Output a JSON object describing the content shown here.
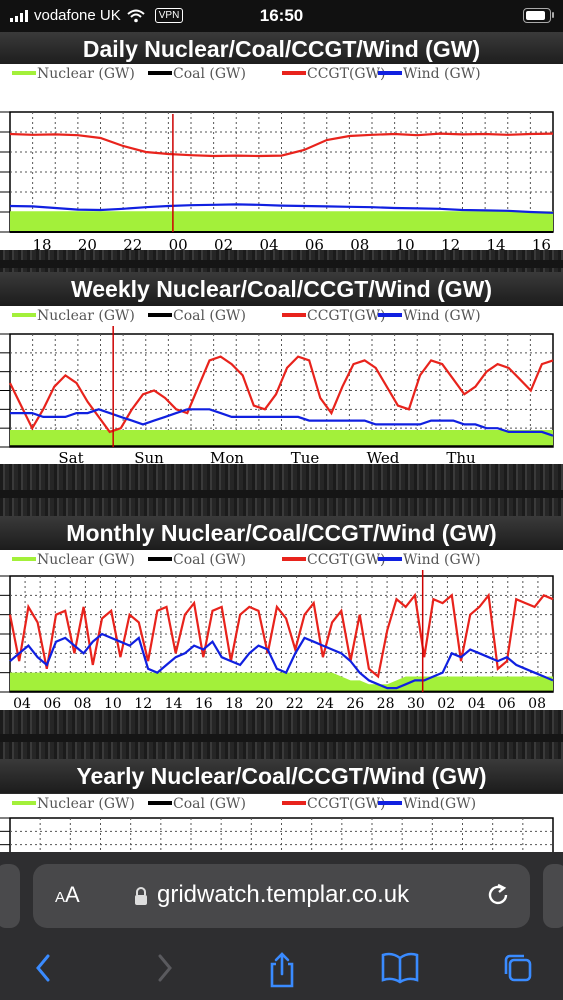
{
  "status_bar": {
    "carrier": "vodafone UK",
    "vpn": "VPN",
    "time": "16:50"
  },
  "page": {
    "sections": [
      {
        "title": "Daily Nuclear/Coal/CCGT/Wind (GW)"
      },
      {
        "title": "Weekly Nuclear/Coal/CCGT/Wind (GW)"
      },
      {
        "title": "Monthly Nuclear/Coal/CCGT/Wind (GW)"
      },
      {
        "title": "Yearly Nuclear/Coal/CCGT/Wind (GW)"
      }
    ]
  },
  "browser": {
    "aa_label_small": "A",
    "aa_label_large": "A",
    "url": "gridwatch.templar.co.uk"
  },
  "colors": {
    "nuclear": "#a3f03a",
    "coal": "#000000",
    "ccgt": "#e8231c",
    "wind": "#1020e0",
    "marker": "#cc0000"
  },
  "chart_data": [
    {
      "type": "line",
      "title": "Daily Nuclear/Coal/CCGT/Wind (GW)",
      "legend": [
        "Nuclear (GW)",
        "Coal (GW)",
        "CCGT(GW)",
        "Wind (GW)"
      ],
      "legend_position": "top",
      "x_ticks": [
        "18",
        "20",
        "22",
        "00",
        "02",
        "04",
        "06",
        "08",
        "10",
        "12",
        "14",
        "16"
      ],
      "grid": true,
      "series": [
        {
          "name": "CCGT(GW)",
          "values": [
            24.5,
            24.3,
            24.4,
            24.2,
            23.5,
            21.5,
            20.0,
            19.5,
            19.2,
            19.0,
            19.1,
            19.0,
            19.1,
            20.5,
            23.0,
            24.0,
            24.3,
            24.5,
            24.2,
            24.6,
            24.4,
            24.5,
            24.3,
            24.5,
            24.6
          ]
        },
        {
          "name": "Wind (GW)",
          "values": [
            6.5,
            6.4,
            6.0,
            5.6,
            5.5,
            5.8,
            6.2,
            6.5,
            6.7,
            6.8,
            6.9,
            6.8,
            6.6,
            6.5,
            6.4,
            6.3,
            6.2,
            6.0,
            5.9,
            5.8,
            5.5,
            5.4,
            5.3,
            5.0,
            4.8
          ]
        },
        {
          "name": "Nuclear (GW)",
          "values": [
            5.2,
            5.2,
            5.2,
            5.2,
            5.2,
            5.2,
            5.2,
            5.2,
            5.2,
            5.2,
            5.2,
            5.2,
            5.2,
            5.2,
            5.2,
            5.2,
            5.2,
            5.2,
            5.2,
            5.2,
            5.2,
            5.2,
            5.2,
            5.2,
            5.2
          ]
        },
        {
          "name": "Coal (GW)",
          "values": [
            0,
            0,
            0,
            0,
            0,
            0,
            0,
            0,
            0,
            0,
            0,
            0,
            0,
            0,
            0,
            0,
            0,
            0,
            0,
            0,
            0,
            0,
            0,
            0,
            0
          ]
        }
      ]
    },
    {
      "type": "line",
      "title": "Weekly Nuclear/Coal/CCGT/Wind (GW)",
      "legend": [
        "Nuclear (GW)",
        "Coal (GW)",
        "CCGT(GW)",
        "Wind (GW)"
      ],
      "legend_position": "top",
      "x_ticks": [
        "Sat",
        "Sun",
        "Mon",
        "Tue",
        "Wed",
        "Thu"
      ],
      "grid": true,
      "series": [
        {
          "name": "CCGT(GW)",
          "values": [
            17,
            11,
            5,
            10,
            16,
            19,
            17,
            12,
            8,
            4,
            5,
            10,
            14,
            15,
            13,
            10,
            9,
            16,
            23,
            24,
            22,
            19,
            11,
            10,
            14,
            21,
            24,
            23,
            13,
            9,
            16,
            22,
            23,
            21,
            16,
            11,
            10,
            19,
            23,
            22,
            18,
            14,
            16,
            20,
            22,
            21,
            18,
            15,
            22,
            23
          ]
        },
        {
          "name": "Wind (GW)",
          "values": [
            9,
            9,
            9,
            8,
            8,
            8,
            9,
            9,
            10,
            9,
            8,
            7,
            6,
            7,
            8,
            9,
            10,
            10,
            10,
            9,
            8,
            8,
            8,
            8,
            8,
            8,
            8,
            7,
            7,
            7,
            7,
            7,
            7,
            6,
            6,
            6,
            6,
            6,
            7,
            7,
            7,
            6,
            6,
            5,
            5,
            4,
            4,
            4,
            4,
            3
          ]
        },
        {
          "name": "Nuclear (GW)",
          "values": [
            4.5,
            4.5,
            4.5,
            4.5,
            4.5,
            4.5,
            4.5,
            4.5,
            4.5,
            4.5,
            4.5,
            4.5,
            4.5,
            4.5,
            4.5,
            4.5,
            4.5,
            4.5,
            4.5,
            4.5,
            4.5,
            4.5,
            4.5,
            4.5,
            4.5,
            4.5,
            4.5,
            4.5,
            4.5,
            4.5,
            4.5,
            4.5,
            4.5,
            4.5,
            4.5,
            4.5,
            4.5,
            4.5,
            4.5,
            4.5,
            4.5,
            4.5,
            4.5,
            4.5,
            4.5,
            4.5,
            4.5,
            4.5,
            4.5,
            4.5
          ]
        },
        {
          "name": "Coal (GW)",
          "values": [
            0.2,
            0.2,
            0.2,
            0.2,
            0.2,
            0.2,
            0.2,
            0.2,
            0.2,
            0.2,
            0.2,
            0.2,
            0.2,
            0.2,
            0.2,
            0.2,
            0.2,
            0.2,
            0.2,
            0.2,
            0.2,
            0.2,
            0.2,
            0.2,
            0.2,
            0.2,
            0.2,
            0.2,
            0.2,
            0.2,
            0.2,
            0.2,
            0.2,
            0.2,
            0.2,
            0.2,
            0.2,
            0.2,
            0.2,
            0.2,
            0.2,
            0.2,
            0.2,
            0.2,
            0.2,
            0.2,
            0.2,
            0.2,
            0.2,
            0.2
          ]
        }
      ]
    },
    {
      "type": "line",
      "title": "Monthly Nuclear/Coal/CCGT/Wind (GW)",
      "legend": [
        "Nuclear (GW)",
        "Coal (GW)",
        "CCGT(GW)",
        "Wind (GW)"
      ],
      "legend_position": "top",
      "x_ticks": [
        "04",
        "06",
        "08",
        "10",
        "12",
        "14",
        "16",
        "18",
        "20",
        "22",
        "24",
        "26",
        "28",
        "30",
        "02",
        "04",
        "06",
        "08"
      ],
      "grid": true,
      "series": [
        {
          "name": "CCGT(GW)",
          "values": [
            20,
            8,
            22,
            18,
            6,
            20,
            21,
            10,
            22,
            7,
            19,
            21,
            9,
            20,
            18,
            8,
            21,
            22,
            10,
            20,
            23,
            9,
            21,
            22,
            8,
            20,
            22,
            21,
            10,
            22,
            19,
            11,
            20,
            23,
            9,
            18,
            21,
            8,
            20,
            6,
            4,
            16,
            24,
            22,
            25,
            9,
            24,
            23,
            25,
            8,
            20,
            22,
            25,
            6,
            8,
            24,
            23,
            22,
            25,
            24
          ]
        },
        {
          "name": "Wind (GW)",
          "values": [
            8,
            10,
            12,
            9,
            7,
            13,
            14,
            12,
            10,
            13,
            15,
            14,
            13,
            12,
            14,
            6,
            5,
            7,
            9,
            10,
            12,
            11,
            13,
            9,
            8,
            7,
            10,
            12,
            11,
            6,
            5,
            10,
            14,
            13,
            12,
            11,
            10,
            8,
            5,
            3,
            2,
            1,
            1,
            2,
            3,
            3,
            4,
            5,
            10,
            9,
            11,
            10,
            9,
            8,
            9,
            7,
            6,
            5,
            4,
            3
          ]
        },
        {
          "name": "Nuclear (GW)",
          "values": [
            5,
            5,
            5,
            5,
            5,
            5,
            5,
            5,
            5,
            5,
            5,
            5,
            5,
            5,
            5,
            5,
            5,
            5,
            5,
            5,
            5,
            5,
            5,
            5,
            5,
            5,
            5,
            5,
            5,
            5,
            5,
            5,
            5,
            5,
            5,
            5,
            4,
            3,
            3,
            2,
            2,
            2,
            3,
            4,
            4,
            4,
            4,
            4,
            4,
            4,
            4,
            4,
            4,
            4,
            4,
            4,
            4,
            4,
            4,
            4
          ]
        },
        {
          "name": "Coal (GW)",
          "values": [
            0.1,
            0.1,
            0.1,
            0.1,
            0.1,
            0.1,
            0.1,
            0.1,
            0.1,
            0.1,
            0.1,
            0.1,
            0.1,
            0.1,
            0.1,
            0.1,
            0.1,
            0.1,
            0.1,
            0.1,
            0.1,
            0.1,
            0.1,
            0.1,
            0.1,
            0.1,
            0.1,
            0.1,
            0.1,
            0.1,
            0.1,
            0.1,
            0.1,
            0.1,
            0.1,
            0.1,
            0.1,
            0.1,
            0.1,
            0.1,
            0.1,
            0.1,
            0.1,
            0.1,
            0.1,
            0.1,
            0.1,
            0.1,
            0.1,
            0.1,
            0.1,
            0.1,
            0.1,
            0.1,
            0.1,
            0.1,
            0.1,
            0.1,
            0.1,
            0.1
          ]
        }
      ]
    },
    {
      "type": "line",
      "title": "Yearly Nuclear/Coal/CCGT/Wind (GW)",
      "legend": [
        "Nuclear (GW)",
        "Coal (GW)",
        "CCGT(GW)",
        "Wind(GW)"
      ],
      "legend_position": "top",
      "grid": true
    }
  ]
}
